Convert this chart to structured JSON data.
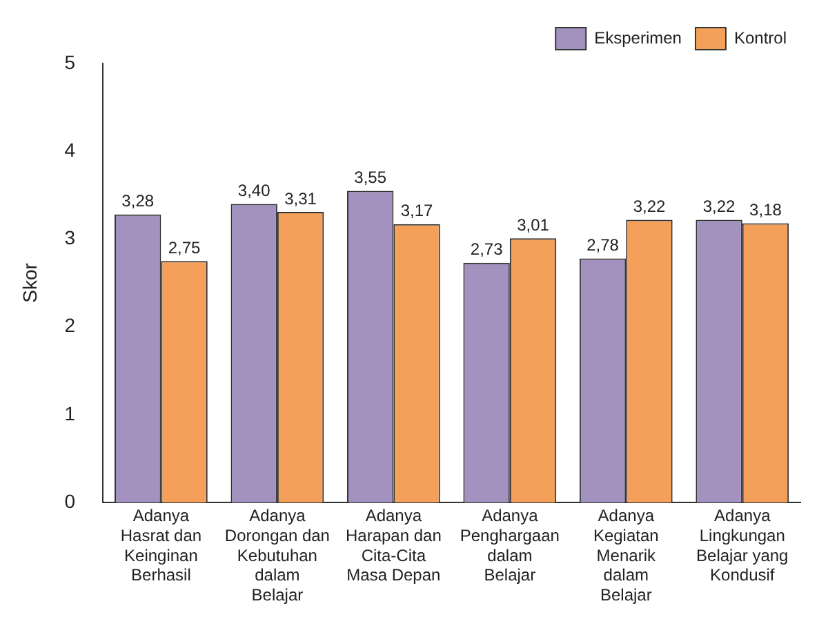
{
  "chart_data": {
    "type": "bar",
    "ylabel": "Skor",
    "categories": [
      "Adanya Hasrat dan Keinginan Berhasil",
      "Adanya Dorongan dan Kebutuhan dalam Belajar",
      "Adanya Harapan dan Cita-Cita Masa Depan",
      "Adanya Penghargaan dalam Belajar",
      "Adanya Kegiatan Menarik dalam Belajar",
      "Adanya Lingkungan Belajar yang Kondusif"
    ],
    "series": [
      {
        "name": "Eksperimen",
        "color": "#a391c0",
        "values": [
          3.28,
          3.4,
          3.55,
          2.73,
          2.78,
          3.22
        ],
        "value_labels": [
          "3,28",
          "3,40",
          "3,55",
          "2,73",
          "2,78",
          "3,22"
        ]
      },
      {
        "name": "Kontrol",
        "color": "#f5a05a",
        "values": [
          2.75,
          3.31,
          3.17,
          3.01,
          3.22,
          3.18
        ],
        "value_labels": [
          "2,75",
          "3,31",
          "3,17",
          "3,01",
          "3,22",
          "3,18"
        ]
      }
    ],
    "ylim": [
      0,
      5
    ],
    "yticks": [
      0,
      1,
      2,
      3,
      4,
      5
    ],
    "grid": false,
    "legend": "top right"
  }
}
